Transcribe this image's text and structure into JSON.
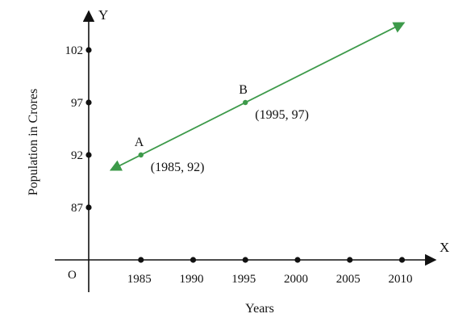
{
  "chart_data": {
    "type": "line",
    "x_axis_letter": "X",
    "y_axis_letter": "Y",
    "origin_label": "O",
    "xlabel": "Years",
    "ylabel": "Population in Crores",
    "x_ticks": [
      1985,
      1990,
      1995,
      2000,
      2005,
      2010
    ],
    "y_ticks": [
      87,
      92,
      97,
      102
    ],
    "xlim": [
      1981,
      2014
    ],
    "ylim": [
      82.5,
      108.5
    ],
    "series": [
      {
        "x": [
          1985,
          1995
        ],
        "y": [
          92,
          97
        ],
        "extends_both_directions": true,
        "points": [
          {
            "label": "A",
            "coords": "(1985, 92)",
            "x": 1985,
            "y": 92
          },
          {
            "label": "B",
            "coords": "(1995, 97)",
            "x": 1995,
            "y": 97
          }
        ]
      }
    ],
    "colors": {
      "line": "#3d9a4a",
      "axes": "#111111"
    },
    "grid": false
  }
}
